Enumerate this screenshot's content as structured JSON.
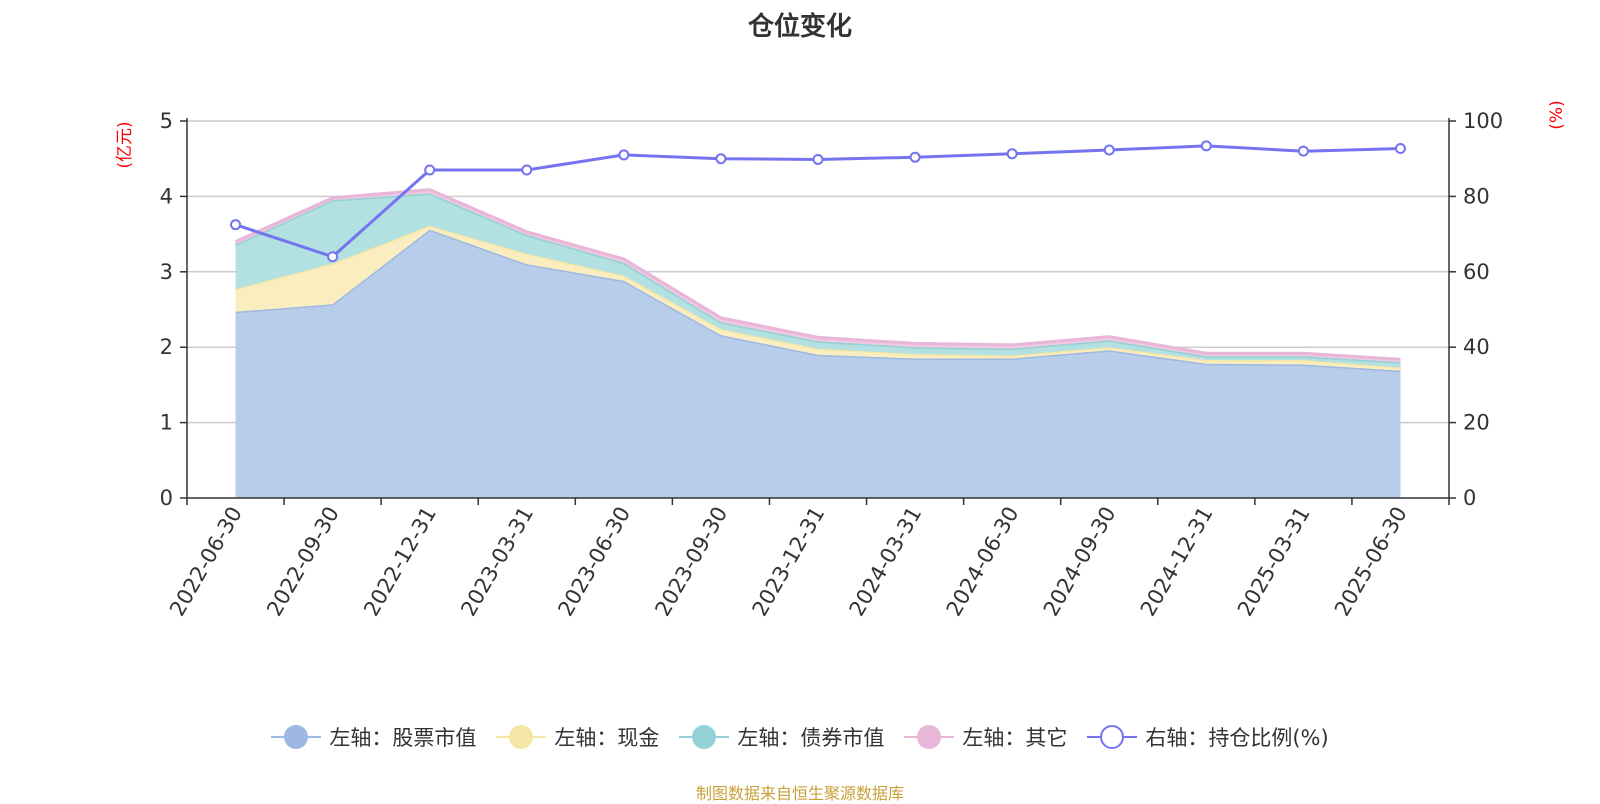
{
  "chart_data": {
    "type": "area",
    "title": "仓位变化",
    "categories": [
      "2022-06-30",
      "2022-09-30",
      "2022-12-31",
      "2023-03-31",
      "2023-06-30",
      "2023-09-30",
      "2023-12-31",
      "2024-03-31",
      "2024-06-30",
      "2024-09-30",
      "2024-12-31",
      "2025-03-31",
      "2025-06-30"
    ],
    "left_axis": {
      "label": "(亿元)",
      "ylim": [
        0,
        5
      ],
      "ticks": [
        0,
        1,
        2,
        3,
        4,
        5
      ]
    },
    "right_axis": {
      "label": "(%)",
      "ylim": [
        0,
        100
      ],
      "ticks": [
        0,
        20,
        40,
        60,
        80,
        100
      ]
    },
    "stacked": true,
    "series": [
      {
        "name": "左轴：股票市值",
        "axis": "left",
        "type": "area",
        "color": "#9db8e1",
        "fill": "#b8cdea",
        "values": [
          2.47,
          2.57,
          3.56,
          3.1,
          2.88,
          2.16,
          1.9,
          1.85,
          1.85,
          1.96,
          1.78,
          1.77,
          1.69
        ]
      },
      {
        "name": "左轴：现金",
        "axis": "left",
        "type": "area",
        "color": "#f7e7a6",
        "fill": "#faedc0",
        "values": [
          0.3,
          0.54,
          0.05,
          0.14,
          0.07,
          0.08,
          0.08,
          0.06,
          0.04,
          0.04,
          0.05,
          0.06,
          0.04
        ]
      },
      {
        "name": "左轴：债券市值",
        "axis": "left",
        "type": "area",
        "color": "#92d2d4",
        "fill": "#b3e0e1",
        "values": [
          0.59,
          0.84,
          0.43,
          0.25,
          0.17,
          0.09,
          0.1,
          0.09,
          0.09,
          0.09,
          0.05,
          0.05,
          0.07
        ]
      },
      {
        "name": "左轴：其它",
        "axis": "left",
        "type": "area",
        "color": "#e8b6d8",
        "fill": "#efc8e2",
        "values": [
          0.04,
          0.03,
          0.05,
          0.04,
          0.05,
          0.06,
          0.05,
          0.05,
          0.05,
          0.05,
          0.04,
          0.04,
          0.04
        ]
      },
      {
        "name": "右轴：持仓比例(%)",
        "axis": "right",
        "type": "line",
        "color": "#7474f0",
        "values": [
          72.5,
          64.0,
          87.0,
          87.0,
          91.0,
          90.0,
          89.8,
          90.4,
          91.3,
          92.3,
          93.4,
          92.0,
          92.7
        ]
      }
    ],
    "grid": true,
    "legend_position": "bottom"
  },
  "footer": {
    "source": "制图数据来自恒生聚源数据库"
  }
}
